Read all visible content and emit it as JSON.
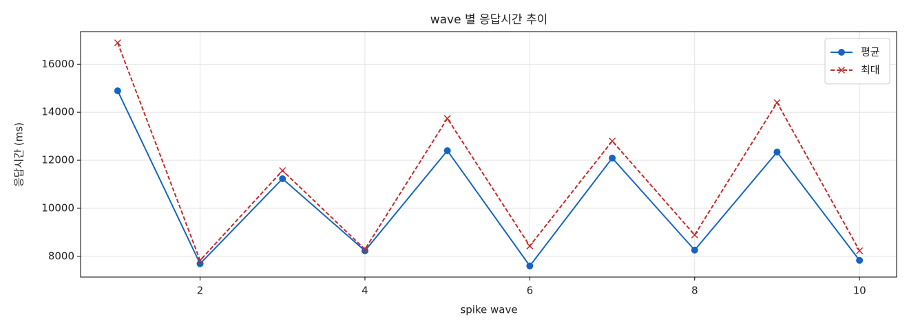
{
  "chart_data": {
    "type": "line",
    "title": "wave 별 응답시간 추이",
    "x_label": "spike wave",
    "y_label": "응답시간 (ms)",
    "x": [
      1,
      2,
      3,
      4,
      5,
      6,
      7,
      8,
      9,
      10
    ],
    "series": [
      {
        "name": "평균",
        "color": "#1565c0",
        "marker": "o",
        "dashed": false,
        "values": [
          14890,
          7690,
          11230,
          8230,
          12400,
          7600,
          12090,
          8260,
          12340,
          7830
        ]
      },
      {
        "name": "최대",
        "color": "#c62828",
        "marker": "x",
        "dashed": true,
        "values": [
          16890,
          7830,
          11570,
          8290,
          13740,
          8430,
          12800,
          8890,
          14400,
          8230
        ]
      }
    ],
    "xlim": [
      0.55,
      10.45
    ],
    "xticks": [
      2,
      4,
      6,
      8,
      10
    ],
    "ylim": [
      7136,
      17355
    ],
    "yticks": [
      8000,
      10000,
      12000,
      14000,
      16000
    ],
    "grid": true,
    "legend": "upper right"
  }
}
